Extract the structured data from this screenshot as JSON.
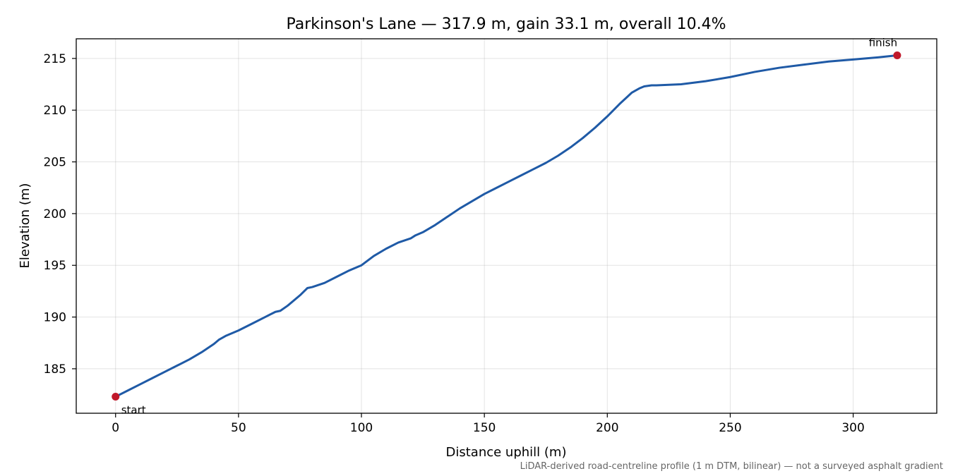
{
  "chart_data": {
    "type": "line",
    "title": "Parkinson's Lane — 317.9 m, gain 33.1 m, overall 10.4%",
    "xlabel": "Distance uphill (m)",
    "ylabel": "Elevation (m)",
    "caption": "LiDAR-derived road-centreline profile (1 m DTM, bilinear) — not a surveyed asphalt gradient",
    "xlim": [
      -16,
      334
    ],
    "ylim": [
      180.7,
      216.9
    ],
    "xticks": [
      0,
      50,
      100,
      150,
      200,
      250,
      300
    ],
    "yticks": [
      185,
      190,
      195,
      200,
      205,
      210,
      215
    ],
    "grid": true,
    "line_color": "#1f5aa6",
    "marker_color": "#c0182a",
    "series": [
      {
        "x": [
          0,
          5,
          10,
          15,
          20,
          25,
          30,
          35,
          40,
          42,
          45,
          50,
          55,
          60,
          65,
          67,
          70,
          75,
          78,
          80,
          85,
          90,
          95,
          100,
          105,
          110,
          115,
          120,
          122,
          125,
          130,
          135,
          140,
          145,
          150,
          155,
          160,
          165,
          170,
          175,
          180,
          185,
          190,
          195,
          200,
          205,
          210,
          213,
          215,
          218,
          220,
          230,
          240,
          250,
          260,
          270,
          280,
          290,
          300,
          310,
          317.9
        ],
        "y": [
          182.3,
          182.9,
          183.5,
          184.1,
          184.7,
          185.3,
          185.9,
          186.6,
          187.4,
          187.8,
          188.2,
          188.7,
          189.3,
          189.9,
          190.5,
          190.6,
          191.1,
          192.1,
          192.8,
          192.9,
          193.3,
          193.9,
          194.5,
          195.0,
          195.9,
          196.6,
          197.2,
          197.6,
          197.9,
          198.2,
          198.9,
          199.7,
          200.5,
          201.2,
          201.9,
          202.5,
          203.1,
          203.7,
          204.3,
          204.9,
          205.6,
          206.4,
          207.3,
          208.3,
          209.4,
          210.6,
          211.7,
          212.1,
          212.3,
          212.4,
          212.4,
          212.5,
          212.8,
          213.2,
          213.7,
          214.1,
          214.4,
          214.7,
          214.9,
          215.1,
          215.3
        ]
      }
    ],
    "annotations": [
      {
        "text": "start",
        "x": 0,
        "y": 182.3
      },
      {
        "text": "finish",
        "x": 317.9,
        "y": 215.3
      }
    ]
  }
}
